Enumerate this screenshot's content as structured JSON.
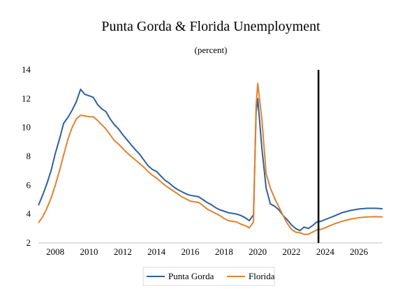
{
  "chart_data": {
    "type": "line",
    "title": "Punta Gorda & Florida Unemployment",
    "subtitle": "(percent)",
    "xlabel": "",
    "ylabel": "",
    "xlim": [
      2007.0,
      2027.4
    ],
    "ylim": [
      2,
      14
    ],
    "x_ticks": [
      2008,
      2010,
      2012,
      2014,
      2016,
      2018,
      2020,
      2022,
      2024,
      2026
    ],
    "y_ticks": [
      2,
      4,
      6,
      8,
      10,
      12,
      14
    ],
    "grid": false,
    "legend_position": "bottom",
    "vertical_marker_x": 2023.6,
    "series": [
      {
        "name": "Punta Gorda",
        "color": "#2f5f9e",
        "points": [
          [
            2007.0,
            4.6
          ],
          [
            2007.25,
            5.3
          ],
          [
            2007.5,
            6.1
          ],
          [
            2007.75,
            7.0
          ],
          [
            2008.0,
            8.2
          ],
          [
            2008.25,
            9.2
          ],
          [
            2008.5,
            10.3
          ],
          [
            2008.75,
            10.7
          ],
          [
            2009.0,
            11.2
          ],
          [
            2009.25,
            11.8
          ],
          [
            2009.5,
            12.65
          ],
          [
            2009.75,
            12.3
          ],
          [
            2010.0,
            12.2
          ],
          [
            2010.25,
            12.1
          ],
          [
            2010.5,
            11.6
          ],
          [
            2010.75,
            11.3
          ],
          [
            2011.0,
            11.1
          ],
          [
            2011.25,
            10.6
          ],
          [
            2011.5,
            10.2
          ],
          [
            2011.75,
            9.9
          ],
          [
            2012.0,
            9.5
          ],
          [
            2012.25,
            9.15
          ],
          [
            2012.5,
            8.8
          ],
          [
            2012.75,
            8.45
          ],
          [
            2013.0,
            8.15
          ],
          [
            2013.25,
            7.75
          ],
          [
            2013.5,
            7.35
          ],
          [
            2013.75,
            7.1
          ],
          [
            2014.0,
            6.95
          ],
          [
            2014.25,
            6.65
          ],
          [
            2014.5,
            6.35
          ],
          [
            2014.75,
            6.15
          ],
          [
            2015.0,
            5.9
          ],
          [
            2015.25,
            5.7
          ],
          [
            2015.5,
            5.55
          ],
          [
            2015.75,
            5.4
          ],
          [
            2016.0,
            5.3
          ],
          [
            2016.25,
            5.25
          ],
          [
            2016.5,
            5.2
          ],
          [
            2016.75,
            5.0
          ],
          [
            2017.0,
            4.8
          ],
          [
            2017.25,
            4.65
          ],
          [
            2017.5,
            4.45
          ],
          [
            2017.75,
            4.3
          ],
          [
            2018.0,
            4.2
          ],
          [
            2018.25,
            4.1
          ],
          [
            2018.5,
            4.05
          ],
          [
            2018.75,
            4.0
          ],
          [
            2019.0,
            3.9
          ],
          [
            2019.25,
            3.75
          ],
          [
            2019.5,
            3.55
          ],
          [
            2019.75,
            3.95
          ],
          [
            2019.9,
            11.0
          ],
          [
            2020.0,
            12.0
          ],
          [
            2020.25,
            8.5
          ],
          [
            2020.5,
            5.8
          ],
          [
            2020.75,
            4.7
          ],
          [
            2021.0,
            4.55
          ],
          [
            2021.25,
            4.3
          ],
          [
            2021.5,
            3.9
          ],
          [
            2021.75,
            3.6
          ],
          [
            2022.0,
            3.25
          ],
          [
            2022.25,
            3.0
          ],
          [
            2022.5,
            2.85
          ],
          [
            2022.75,
            3.1
          ],
          [
            2023.0,
            3.0
          ],
          [
            2023.25,
            3.2
          ],
          [
            2023.5,
            3.45
          ],
          [
            2023.75,
            3.5
          ],
          [
            2024.0,
            3.62
          ],
          [
            2024.5,
            3.85
          ],
          [
            2025.0,
            4.1
          ],
          [
            2025.5,
            4.25
          ],
          [
            2026.0,
            4.35
          ],
          [
            2026.5,
            4.4
          ],
          [
            2027.0,
            4.4
          ],
          [
            2027.4,
            4.37
          ]
        ]
      },
      {
        "name": "Florida",
        "color": "#e0822d",
        "points": [
          [
            2007.0,
            3.4
          ],
          [
            2007.25,
            3.8
          ],
          [
            2007.5,
            4.4
          ],
          [
            2007.75,
            5.1
          ],
          [
            2008.0,
            6.0
          ],
          [
            2008.25,
            7.0
          ],
          [
            2008.5,
            8.1
          ],
          [
            2008.75,
            9.2
          ],
          [
            2009.0,
            10.0
          ],
          [
            2009.25,
            10.6
          ],
          [
            2009.5,
            10.85
          ],
          [
            2009.75,
            10.8
          ],
          [
            2010.0,
            10.75
          ],
          [
            2010.25,
            10.75
          ],
          [
            2010.5,
            10.5
          ],
          [
            2010.75,
            10.2
          ],
          [
            2011.0,
            9.9
          ],
          [
            2011.25,
            9.5
          ],
          [
            2011.5,
            9.1
          ],
          [
            2011.75,
            8.85
          ],
          [
            2012.0,
            8.55
          ],
          [
            2012.25,
            8.25
          ],
          [
            2012.5,
            8.0
          ],
          [
            2012.75,
            7.75
          ],
          [
            2013.0,
            7.5
          ],
          [
            2013.25,
            7.25
          ],
          [
            2013.5,
            6.95
          ],
          [
            2013.75,
            6.7
          ],
          [
            2014.0,
            6.5
          ],
          [
            2014.25,
            6.25
          ],
          [
            2014.5,
            6.0
          ],
          [
            2014.75,
            5.8
          ],
          [
            2015.0,
            5.6
          ],
          [
            2015.25,
            5.4
          ],
          [
            2015.5,
            5.2
          ],
          [
            2015.75,
            5.05
          ],
          [
            2016.0,
            4.9
          ],
          [
            2016.25,
            4.85
          ],
          [
            2016.5,
            4.8
          ],
          [
            2016.75,
            4.6
          ],
          [
            2017.0,
            4.35
          ],
          [
            2017.25,
            4.2
          ],
          [
            2017.5,
            4.05
          ],
          [
            2017.75,
            3.9
          ],
          [
            2018.0,
            3.7
          ],
          [
            2018.25,
            3.55
          ],
          [
            2018.5,
            3.5
          ],
          [
            2018.75,
            3.45
          ],
          [
            2019.0,
            3.3
          ],
          [
            2019.25,
            3.2
          ],
          [
            2019.5,
            3.05
          ],
          [
            2019.75,
            3.45
          ],
          [
            2019.9,
            11.5
          ],
          [
            2020.0,
            13.05
          ],
          [
            2020.25,
            10.5
          ],
          [
            2020.5,
            6.8
          ],
          [
            2020.75,
            5.8
          ],
          [
            2021.0,
            5.1
          ],
          [
            2021.25,
            4.5
          ],
          [
            2021.5,
            3.9
          ],
          [
            2021.75,
            3.35
          ],
          [
            2022.0,
            2.95
          ],
          [
            2022.25,
            2.75
          ],
          [
            2022.5,
            2.7
          ],
          [
            2022.75,
            2.6
          ],
          [
            2023.0,
            2.6
          ],
          [
            2023.25,
            2.75
          ],
          [
            2023.5,
            2.9
          ],
          [
            2023.75,
            2.95
          ],
          [
            2024.0,
            3.05
          ],
          [
            2024.5,
            3.3
          ],
          [
            2025.0,
            3.5
          ],
          [
            2025.5,
            3.65
          ],
          [
            2026.0,
            3.75
          ],
          [
            2026.5,
            3.8
          ],
          [
            2027.0,
            3.82
          ],
          [
            2027.4,
            3.8
          ]
        ]
      }
    ]
  }
}
